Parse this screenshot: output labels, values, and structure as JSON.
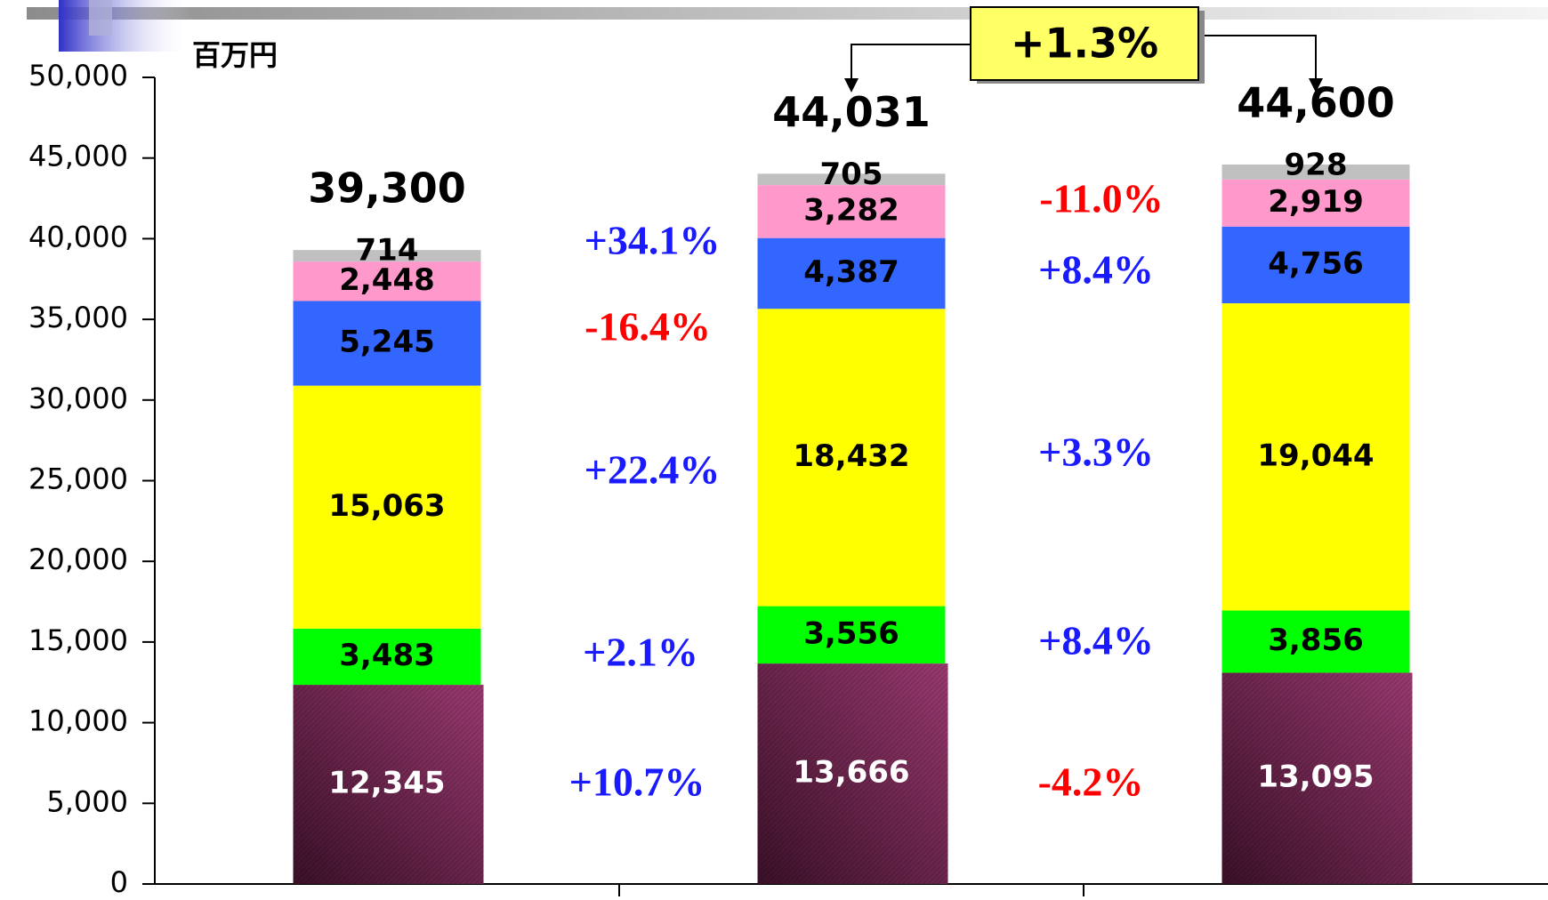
{
  "chart_data": {
    "type": "stacked-bar",
    "unit": "百万円",
    "categories": [
      null,
      null,
      null
    ],
    "ylim": [
      0,
      50000
    ],
    "yticks": [
      0,
      {
        "value": 5000,
        "label": "5,000"
      },
      {
        "value": 10000,
        "label": "10,000"
      },
      {
        "value": 15000,
        "label": "15,000"
      },
      {
        "value": 20000,
        "label": "20,000"
      },
      {
        "value": 25000,
        "label": "25,000"
      },
      {
        "value": 30000,
        "label": "30,000"
      },
      {
        "value": 35000,
        "label": "35,000"
      },
      {
        "value": 40000,
        "label": "40,000"
      },
      {
        "value": 45000,
        "label": "45,000"
      },
      {
        "value": 50000,
        "label": "50,000"
      }
    ],
    "series": [
      {
        "color": "#7a2a58",
        "label_color": "#ffffff",
        "values": [
          12345,
          13666,
          13095
        ],
        "value_labels": [
          "12,345",
          "13,666",
          "13,095"
        ]
      },
      {
        "color": "#00ff00",
        "label_color": "#000000",
        "values": [
          3483,
          3556,
          3856
        ],
        "value_labels": [
          "3,483",
          "3,556",
          "3,856"
        ]
      },
      {
        "color": "#ffff00",
        "label_color": "#000000",
        "values": [
          15063,
          18432,
          19044
        ],
        "value_labels": [
          "15,063",
          "18,432",
          "19,044"
        ]
      },
      {
        "color": "#3366ff",
        "label_color": "#000000",
        "values": [
          5245,
          4387,
          4756
        ],
        "value_labels": [
          "5,245",
          "4,387",
          "4,756"
        ]
      },
      {
        "color": "#ff99cc",
        "label_color": "#000000",
        "values": [
          2448,
          3282,
          2919
        ],
        "value_labels": [
          "2,448",
          "3,282",
          "2,919"
        ]
      },
      {
        "color": "#c0c0c0",
        "label_color": "#000000",
        "values": [
          714,
          705,
          928
        ],
        "value_labels": [
          "714",
          "705",
          "928"
        ]
      }
    ],
    "totals": [
      39300,
      44031,
      44600
    ],
    "totals_labels": [
      "39,300",
      "44,031",
      "44,600"
    ],
    "annotations": [
      {
        "text": "+34.1%",
        "color": "#1a1aff"
      },
      {
        "text": "-16.4%",
        "color": "#ff0000"
      },
      {
        "text": "+22.4%",
        "color": "#1a1aff"
      },
      {
        "text": "+2.1%",
        "color": "#1a1aff"
      },
      {
        "text": "+10.7%",
        "color": "#1a1aff"
      },
      {
        "text": "-11.0%",
        "color": "#ff0000"
      },
      {
        "text": "+8.4%",
        "color": "#1a1aff"
      },
      {
        "text": "+3.3%",
        "color": "#1a1aff"
      },
      {
        "text": "+8.4%",
        "color": "#1a1aff"
      },
      {
        "text": "-4.2%",
        "color": "#ff0000"
      }
    ],
    "callout": "+1.3%"
  }
}
